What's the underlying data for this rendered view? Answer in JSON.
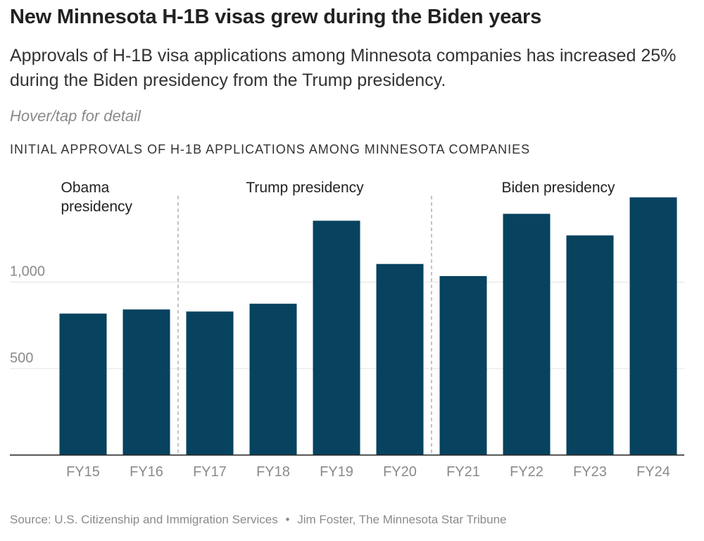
{
  "header": {
    "title": "New Minnesota H-1B visas grew during the Biden years",
    "subtitle": "Approvals of H-1B visa applications among Minnesota companies has increased 25% during the Biden presidency from the Trump presidency.",
    "hint": "Hover/tap for detail"
  },
  "chart_data": {
    "type": "bar",
    "title": "INITIAL APPROVALS OF H-1B APPLICATIONS AMONG MINNESOTA COMPANIES",
    "categories": [
      "FY15",
      "FY16",
      "FY17",
      "FY18",
      "FY19",
      "FY20",
      "FY21",
      "FY22",
      "FY23",
      "FY24"
    ],
    "values": [
      818,
      842,
      830,
      875,
      1355,
      1105,
      1035,
      1395,
      1270,
      1490
    ],
    "yticks": [
      500,
      1000
    ],
    "ytick_labels": [
      "500",
      "1,000"
    ],
    "ylim": [
      0,
      1600
    ],
    "grid": true,
    "bar_color": "#07425f",
    "periods": [
      {
        "label_lines": [
          "Obama",
          "presidency"
        ],
        "start": 0,
        "end": 1
      },
      {
        "label_lines": [
          "Trump presidency"
        ],
        "start": 2,
        "end": 5
      },
      {
        "label_lines": [
          "Biden presidency"
        ],
        "start": 6,
        "end": 9
      }
    ]
  },
  "footer": {
    "source": "Source: U.S. Citizenship and Immigration Services",
    "separator": "•",
    "credit": "Jim Foster, The Minnesota Star Tribune"
  }
}
